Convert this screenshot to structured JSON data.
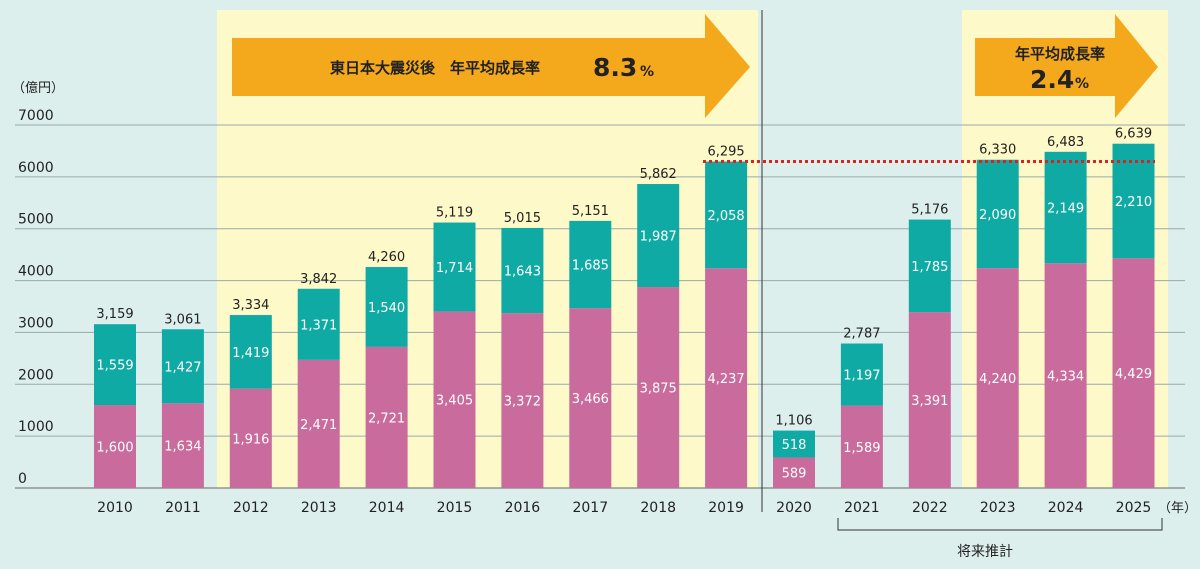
{
  "chart_data": {
    "type": "bar",
    "stacked": true,
    "unit_label": "（億円）",
    "x_unit_label": "（年）",
    "categories": [
      "2010",
      "2011",
      "2012",
      "2013",
      "2014",
      "2015",
      "2016",
      "2017",
      "2018",
      "2019",
      "2020",
      "2021",
      "2022",
      "2023",
      "2024",
      "2025"
    ],
    "series": [
      {
        "values": [
          1600,
          1634,
          1916,
          2471,
          2721,
          3405,
          3372,
          3466,
          3875,
          4237,
          589,
          1589,
          3391,
          4240,
          4334,
          4429
        ],
        "color": "#c96b9c"
      },
      {
        "values": [
          1559,
          1427,
          1419,
          1371,
          1540,
          1714,
          1643,
          1685,
          1987,
          2058,
          518,
          1197,
          1785,
          2090,
          2149,
          2210
        ],
        "color": "#10aaa5"
      }
    ],
    "value_labels_bottom": [
      "1,600",
      "1,634",
      "1,916",
      "2,471",
      "2,721",
      "3,405",
      "3,372",
      "3,466",
      "3,875",
      "4,237",
      "589",
      "1,589",
      "3,391",
      "4,240",
      "4,334",
      "4,429"
    ],
    "value_labels_top": [
      "1,559",
      "1,427",
      "1,419",
      "1,371",
      "1,540",
      "1,714",
      "1,643",
      "1,685",
      "1,987",
      "2,058",
      "518",
      "1,197",
      "1,785",
      "2,090",
      "2,149",
      "2,210"
    ],
    "totals": [
      "3,159",
      "3,061",
      "3,334",
      "3,842",
      "4,260",
      "5,119",
      "5,015",
      "5,151",
      "5,862",
      "6,295",
      "1,106",
      "2,787",
      "5,176",
      "6,330",
      "6,483",
      "6,639"
    ],
    "ylim": [
      0,
      7000
    ],
    "yticks": [
      "0",
      "1000",
      "2000",
      "3000",
      "4000",
      "5000",
      "6000",
      "7000"
    ],
    "grid": true,
    "reference_line_value": 6295,
    "reference_line_color": "#e02020",
    "annotations": {
      "arrow1_text": "東日本大震災後　年平均成長率",
      "arrow1_value": "8.3",
      "arrow1_pct": "%",
      "arrow2_text": "年平均成長率",
      "arrow2_value": "2.4",
      "arrow2_pct": "%",
      "forecast_label": "将来推計"
    },
    "highlight_color": "#fdf9c8",
    "arrow_color": "#f4a81c"
  }
}
